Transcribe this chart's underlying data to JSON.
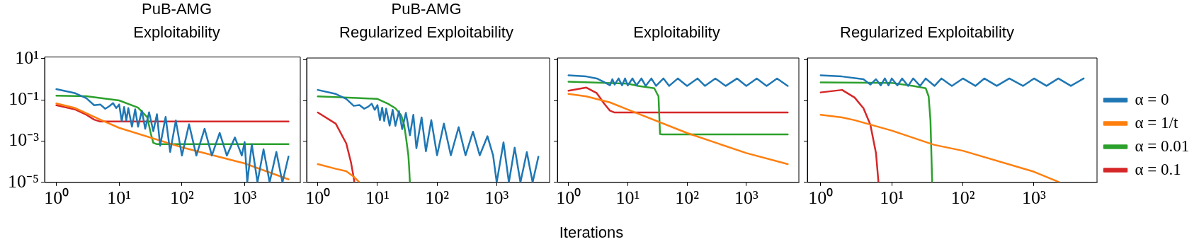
{
  "chart_data": [
    {
      "type": "line",
      "title": "PuB-AMG\nExploitability",
      "log": "xy",
      "xlim": [
        0.65,
        7700
      ],
      "ylim": [
        1e-05,
        12
      ],
      "xticks": [
        {
          "value": 1,
          "label": "10⁰"
        },
        {
          "value": 10,
          "label": "10¹"
        },
        {
          "value": 100,
          "label": "10²"
        },
        {
          "value": 1000,
          "label": "10³"
        }
      ],
      "yticks": [
        {
          "value": 10,
          "label": "10¹"
        },
        {
          "value": 0.1,
          "label": "10⁻¹"
        },
        {
          "value": 0.001,
          "label": "10⁻³"
        },
        {
          "value": 1e-05,
          "label": "10⁻⁵"
        }
      ],
      "series": [
        {
          "color": "#1f77b4",
          "x": [
            1,
            2,
            3,
            4,
            5,
            6,
            7,
            8,
            9,
            10,
            11,
            12,
            13,
            14,
            16,
            18,
            20,
            23,
            26,
            30,
            35,
            40,
            45,
            55,
            65,
            80,
            100,
            130,
            170,
            230,
            300,
            400,
            520,
            700,
            900,
            1000,
            1100,
            1300,
            1600,
            2000,
            2500,
            3200,
            4000,
            5000
          ],
          "values": [
            0.33,
            0.21,
            0.12,
            0.055,
            0.06,
            0.037,
            0.05,
            0.07,
            0.04,
            0.06,
            0.009,
            0.045,
            0.01,
            0.04,
            0.005,
            0.035,
            0.005,
            0.03,
            0.004,
            0.025,
            0.003,
            0.02,
            0.0006,
            0.015,
            0.0003,
            0.01,
            0.0002,
            0.0065,
            0.0002,
            0.004,
            0.0002,
            0.0025,
            0.0002,
            0.0015,
            0.0002,
            0.0009,
            1e-05,
            0.0007,
            1e-05,
            0.0004,
            1e-05,
            0.0003,
            1e-05,
            0.00018
          ]
        },
        {
          "color": "#ff7f0e",
          "x": [
            1,
            2,
            5,
            10,
            100,
            1000,
            5000
          ],
          "values": [
            0.067,
            0.04,
            0.011,
            0.0044,
            0.0005,
            8.3e-05,
            1.4e-05
          ]
        },
        {
          "color": "#2ca02c",
          "x": [
            1,
            3,
            10,
            20,
            28,
            32,
            35,
            40,
            5000
          ],
          "values": [
            0.16,
            0.15,
            0.094,
            0.042,
            0.0145,
            0.0023,
            0.00083,
            0.00071,
            0.00071
          ]
        },
        {
          "color": "#d62728",
          "x": [
            1,
            2,
            3,
            4,
            5,
            5000
          ],
          "values": [
            0.055,
            0.034,
            0.019,
            0.011,
            0.0089,
            0.0089
          ]
        }
      ]
    },
    {
      "type": "line",
      "title": "PuB-AMG\nRegularized Exploitability",
      "log": "xy",
      "tick_labels": "x",
      "xlim": [
        0.65,
        7700
      ],
      "ylim": [
        1e-05,
        12
      ],
      "xticks": [
        {
          "value": 1,
          "label": "10⁰"
        },
        {
          "value": 10,
          "label": "10¹"
        },
        {
          "value": 100,
          "label": "10²"
        },
        {
          "value": 1000,
          "label": "10³"
        }
      ],
      "yticks": [
        {
          "value": 10,
          "label": null
        },
        {
          "value": 0.1,
          "label": null
        },
        {
          "value": 0.001,
          "label": null
        },
        {
          "value": 1e-05,
          "label": null
        }
      ],
      "series": [
        {
          "color": "#1f77b4",
          "x": [
            1,
            2,
            3,
            4,
            5,
            6,
            7,
            8,
            9,
            10,
            11,
            12,
            13,
            14,
            16,
            18,
            20,
            23,
            26,
            30,
            35,
            40,
            45,
            55,
            65,
            80,
            100,
            130,
            170,
            230,
            300,
            400,
            520,
            700,
            870,
            1000,
            1300,
            1600,
            2000,
            2500,
            3200,
            4000,
            5000
          ],
          "values": [
            0.33,
            0.21,
            0.12,
            0.055,
            0.06,
            0.04,
            0.05,
            0.07,
            0.035,
            0.06,
            0.011,
            0.045,
            0.01,
            0.04,
            0.006,
            0.035,
            0.0058,
            0.03,
            0.004,
            0.025,
            0.002,
            0.02,
            0.00047,
            0.015,
            0.00033,
            0.011,
            0.00021,
            0.0075,
            0.00021,
            0.005,
            0.00021,
            0.003,
            0.00021,
            0.0018,
            0.00021,
            1e-05,
            0.0009,
            1e-05,
            0.0005,
            1e-05,
            0.0003,
            1e-05,
            0.00018
          ]
        },
        {
          "color": "#ff7f0e",
          "x": [
            1,
            2,
            3,
            4,
            5
          ],
          "values": [
            7.8e-05,
            4.6e-05,
            3.5e-05,
            1.9e-05,
            1e-05
          ]
        },
        {
          "color": "#2ca02c",
          "x": [
            1,
            10,
            15,
            20,
            25,
            28,
            30,
            33,
            34,
            35
          ],
          "values": [
            0.16,
            0.12,
            0.07,
            0.042,
            0.019,
            0.0065,
            0.0017,
            0.00021,
            5.5e-05,
            1e-05
          ]
        },
        {
          "color": "#d62728",
          "x": [
            1,
            2,
            3,
            3.6,
            4,
            4.1
          ],
          "values": [
            0.026,
            0.0074,
            0.0008,
            9.5e-05,
            1.7e-05,
            1e-05
          ]
        }
      ]
    },
    {
      "type": "line",
      "title": "Exploitability",
      "xlabel": "Iterations",
      "log": "xy",
      "tick_labels": "x",
      "xlim": [
        0.65,
        7700
      ],
      "ylim": [
        1e-05,
        12
      ],
      "xticks": [
        {
          "value": 1,
          "label": "10⁰"
        },
        {
          "value": 10,
          "label": "10¹"
        },
        {
          "value": 100,
          "label": "10²"
        },
        {
          "value": 1000,
          "label": "10³"
        }
      ],
      "yticks": [
        {
          "value": 10,
          "label": null
        },
        {
          "value": 0.1,
          "label": null
        },
        {
          "value": 0.001,
          "label": null
        },
        {
          "value": 1e-05,
          "label": null
        }
      ],
      "series": [
        {
          "color": "#1f77b4",
          "x": [
            1,
            2,
            3,
            4,
            5,
            5.5,
            6,
            7,
            8,
            9,
            10,
            12,
            14,
            17,
            20,
            25,
            30,
            40,
            50,
            70,
            100,
            150,
            200,
            300,
            450,
            700,
            1000,
            1500,
            2200,
            3300,
            5000
          ],
          "values": [
            1.7,
            1.5,
            1.2,
            0.8,
            0.55,
            1.1,
            0.6,
            1.2,
            0.55,
            1.2,
            0.55,
            1.2,
            0.55,
            1.2,
            0.52,
            1.2,
            0.52,
            1.2,
            0.52,
            1.2,
            0.52,
            1.2,
            0.52,
            1.2,
            0.52,
            1.2,
            0.52,
            1.2,
            0.52,
            1.2,
            0.52
          ]
        },
        {
          "color": "#ff7f0e",
          "x": [
            1,
            2,
            5,
            10,
            100,
            1000,
            5000
          ],
          "values": [
            0.21,
            0.16,
            0.081,
            0.036,
            0.0026,
            0.00027,
            7.8e-05
          ]
        },
        {
          "color": "#2ca02c",
          "x": [
            1,
            10,
            15,
            28,
            33,
            35,
            38,
            5000
          ],
          "values": [
            0.83,
            0.67,
            0.52,
            0.4,
            0.16,
            0.0023,
            0.0022,
            0.0022
          ]
        },
        {
          "color": "#d62728",
          "x": [
            1,
            2,
            3,
            4,
            5,
            6,
            5000
          ],
          "values": [
            0.3,
            0.43,
            0.23,
            0.071,
            0.032,
            0.026,
            0.026
          ]
        }
      ]
    },
    {
      "type": "line",
      "title": "Regularized Exploitability",
      "log": "xy",
      "tick_labels": "x",
      "legend": "right",
      "xlim": [
        0.65,
        7700
      ],
      "ylim": [
        1e-05,
        12
      ],
      "xticks": [
        {
          "value": 1,
          "label": "10⁰"
        },
        {
          "value": 10,
          "label": "10¹"
        },
        {
          "value": 100,
          "label": "10²"
        },
        {
          "value": 1000,
          "label": "10³"
        }
      ],
      "yticks": [
        {
          "value": 10,
          "label": null
        },
        {
          "value": 0.1,
          "label": null
        },
        {
          "value": 0.001,
          "label": null
        },
        {
          "value": 1e-05,
          "label": null
        }
      ],
      "series": [
        {
          "name": "α = 0",
          "color": "#1f77b4",
          "x": [
            1,
            2,
            4,
            5,
            6,
            7,
            8,
            9,
            10,
            12,
            14,
            17,
            20,
            25,
            30,
            40,
            50,
            70,
            100,
            150,
            200,
            300,
            450,
            700,
            1000,
            1500,
            2200,
            3300,
            5000
          ],
          "values": [
            1.7,
            1.5,
            1.1,
            0.6,
            1.1,
            0.55,
            1.2,
            0.55,
            1.2,
            0.55,
            1.2,
            0.52,
            1.2,
            0.52,
            1.2,
            0.52,
            1.2,
            0.52,
            1.2,
            0.52,
            1.2,
            0.52,
            1.2,
            0.52,
            1.2,
            0.52,
            1.2,
            0.52,
            1.2
          ]
        },
        {
          "name": "α = 1/t",
          "color": "#ff7f0e",
          "x": [
            1,
            2,
            3,
            10,
            39,
            100,
            1000,
            2300
          ],
          "values": [
            0.02,
            0.015,
            0.011,
            0.0034,
            0.00069,
            0.00035,
            3.3e-05,
            1e-05
          ]
        },
        {
          "name": "α = 0.01",
          "color": "#2ca02c",
          "x": [
            1,
            10,
            20,
            30,
            33,
            35,
            37
          ],
          "values": [
            0.77,
            0.72,
            0.52,
            0.4,
            0.16,
            0.011,
            1e-05
          ]
        },
        {
          "name": "α = 0.1",
          "color": "#d62728",
          "x": [
            1,
            2,
            3,
            4,
            5,
            6,
            6.5
          ],
          "values": [
            0.25,
            0.33,
            0.14,
            0.042,
            0.0066,
            0.00027,
            1e-05
          ]
        }
      ]
    }
  ]
}
